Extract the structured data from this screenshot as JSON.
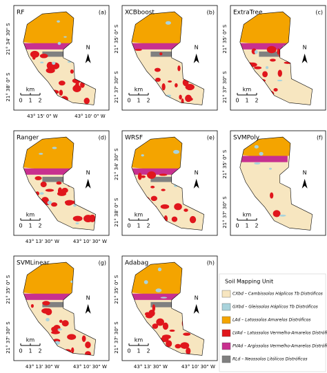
{
  "panels": [
    {
      "title": "RF",
      "letter": "(a)",
      "lat_labels": [
        "21° 34' 30\" S",
        "21° 38' 0\" S"
      ],
      "lon_labels": [
        "43° 15' 0\" W",
        "43° 10' 0\" W"
      ]
    },
    {
      "title": "XCBboost",
      "letter": "(b)",
      "lat_labels": [
        "21° 35' 0\" S",
        "21° 37' 30\" S"
      ],
      "lon_labels": []
    },
    {
      "title": "ExtraTree",
      "letter": "(c)",
      "lat_labels": [
        "21° 35' 0\" S",
        "21° 37' 30\" S"
      ],
      "lon_labels": []
    },
    {
      "title": "Ranger",
      "letter": "(d)",
      "lat_labels": [],
      "lon_labels": [
        "43° 13' 30\" W",
        "43° 10' 30\" W"
      ]
    },
    {
      "title": "WRSF",
      "letter": "(e)",
      "lat_labels": [
        "21° 34' 30\" S",
        "21° 38' 0\" S"
      ],
      "lon_labels": []
    },
    {
      "title": "SVMPoly",
      "letter": "(f)",
      "lat_labels": [
        "21° 35' 0\" S",
        "21° 37' 30\" S"
      ],
      "lon_labels": []
    },
    {
      "title": "SVMLinear",
      "letter": "(g)",
      "lat_labels": [
        "21° 35' 0\" S",
        "21° 37' 30\" S"
      ],
      "lon_labels": [
        "43° 13' 30\" W",
        "43° 10' 30\" W"
      ]
    },
    {
      "title": "Adabag",
      "letter": "(h)",
      "lat_labels": [
        "21° 35' 0\" S",
        "21° 37' 30\" S"
      ],
      "lon_labels": [
        "43° 13' 30\" W",
        "43° 10' 30\" W"
      ]
    }
  ],
  "scale": {
    "unit": "km",
    "labels": [
      "0",
      "1",
      "2"
    ]
  },
  "north": "N",
  "legend": {
    "title": "Soil Mapping Unit",
    "items": [
      {
        "label": "CXbd – Cambissolos Háplicos Tb Distróficos",
        "color": "#f7e6c0"
      },
      {
        "label": "GXbd – Gleissolos Háplicos Tb Distróficos",
        "color": "#a9d3dc"
      },
      {
        "label": "LAd – Latossolos Amarelos Distróficos",
        "color": "#f4a400"
      },
      {
        "label": "LVAd – Latossolos Vermelho-Amarelos Distróficos",
        "color": "#e0161c"
      },
      {
        "label": "PVAd – Argissolos Vermelho-Amarelos Distróficos",
        "color": "#c8308f"
      },
      {
        "label": "RLd – Neossolos Litólicos Distróficos",
        "color": "#808080"
      }
    ]
  }
}
